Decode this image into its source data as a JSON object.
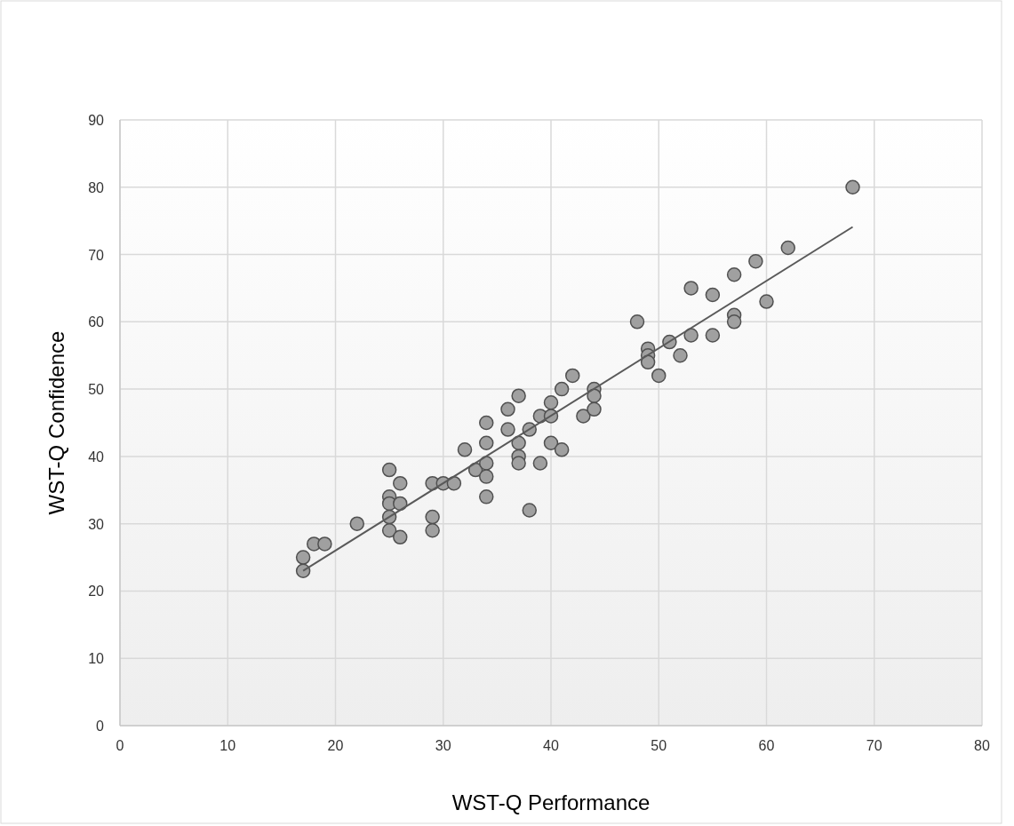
{
  "chart_data": {
    "type": "scatter",
    "xlabel": "WST-Q Performance",
    "ylabel": "WST-Q Confidence",
    "xlim": [
      0,
      80
    ],
    "xticks": [
      0,
      10,
      20,
      30,
      40,
      50,
      60,
      70,
      80
    ],
    "ylim": [
      0,
      90
    ],
    "yticks": [
      0,
      10,
      20,
      30,
      40,
      50,
      60,
      70,
      80,
      90
    ],
    "grid": true,
    "marker": "circle",
    "series": [
      {
        "color": "#a0a0a0",
        "x": [
          17,
          17,
          18,
          19,
          22,
          25,
          25,
          25,
          25,
          25,
          26,
          26,
          26,
          29,
          29,
          29,
          30,
          31,
          32,
          33,
          34,
          34,
          34,
          34,
          34,
          36,
          36,
          37,
          37,
          37,
          37,
          38,
          38,
          39,
          39,
          40,
          40,
          40,
          41,
          41,
          42,
          43,
          44,
          44,
          44,
          48,
          49,
          49,
          49,
          50,
          51,
          52,
          53,
          53,
          55,
          55,
          57,
          57,
          57,
          59,
          60,
          62,
          68
        ],
        "values": [
          23,
          25,
          27,
          27,
          30,
          38,
          34,
          33,
          31,
          29,
          36,
          33,
          28,
          36,
          31,
          29,
          36,
          36,
          41,
          38,
          45,
          42,
          39,
          37,
          34,
          47,
          44,
          49,
          42,
          40,
          39,
          44,
          32,
          46,
          39,
          48,
          46,
          42,
          50,
          41,
          52,
          46,
          50,
          49,
          47,
          60,
          56,
          55,
          54,
          52,
          57,
          55,
          65,
          58,
          64,
          58,
          67,
          61,
          60,
          69,
          63,
          71,
          80
        ]
      },
      {
        "type": "line",
        "color": "#595959",
        "marker": "none",
        "x": [
          17,
          68
        ],
        "values": [
          23.0,
          74.1
        ]
      }
    ]
  }
}
